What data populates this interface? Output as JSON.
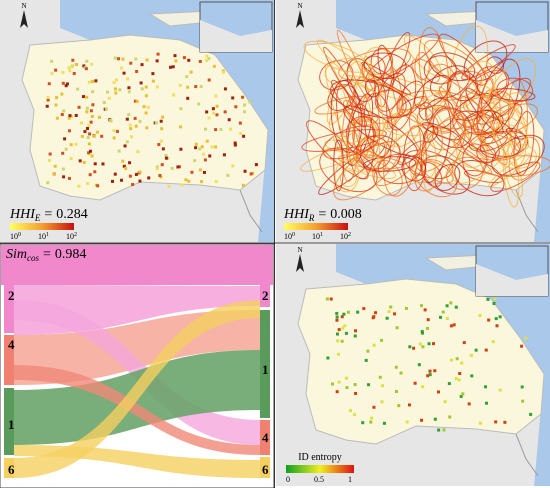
{
  "panels": [
    {
      "north": "N",
      "equation": {
        "symbol": "HHI",
        "subscript": "E",
        "relation": "=",
        "value": 0.284
      },
      "colorbar": {
        "ticks": [
          {
            "base": 10,
            "exponent": 0
          },
          {
            "base": 10,
            "exponent": 1
          },
          {
            "base": 10,
            "exponent": 2
          }
        ]
      }
    },
    {
      "north": "N",
      "equation": {
        "symbol": "HHI",
        "subscript": "R",
        "relation": "=",
        "value": 0.008
      },
      "colorbar": {
        "ticks": [
          {
            "base": 10,
            "exponent": 0
          },
          {
            "base": 10,
            "exponent": 1
          },
          {
            "base": 10,
            "exponent": 2
          }
        ]
      }
    },
    {
      "equation": {
        "symbol": "Sim",
        "subscript": "cos",
        "relation": "=",
        "value": 0.984
      },
      "sankey": {
        "left_nodes": [
          "2",
          "4",
          "1",
          "6"
        ],
        "right_nodes": [
          "2",
          "1",
          "4",
          "6"
        ]
      }
    },
    {
      "north": "N",
      "colorbar": {
        "title": "ID entropy",
        "ticks": [
          0,
          0.5,
          1
        ]
      }
    }
  ]
}
